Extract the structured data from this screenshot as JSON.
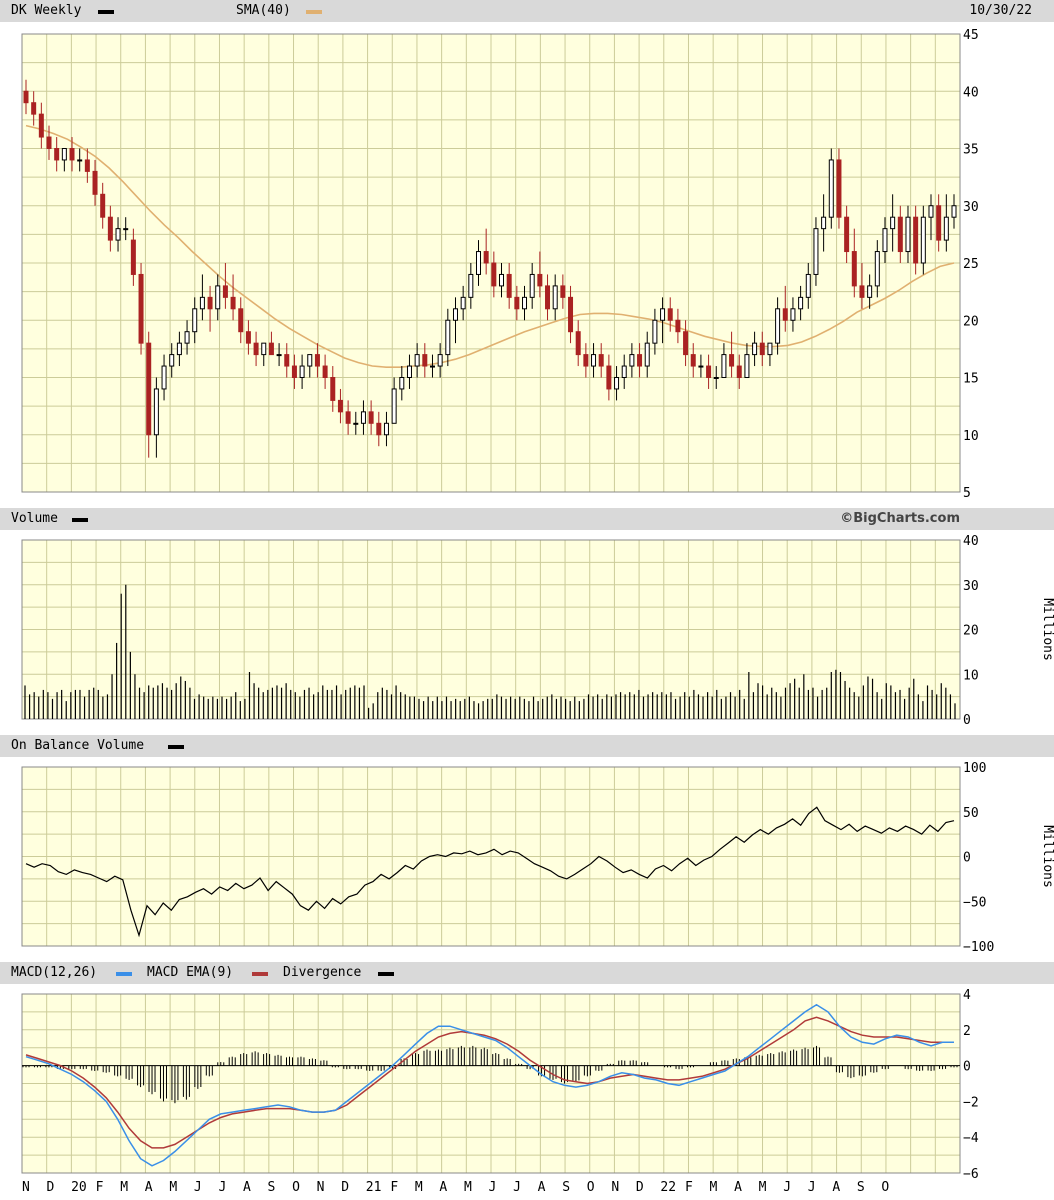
{
  "colors": {
    "plot_bg": "#ffffde",
    "grid": "#cccc99",
    "up": "#000000",
    "down": "#aa2222",
    "sma": "#e0b070",
    "macd": "#3a8fe8",
    "signal": "#b03a3a",
    "line": "#000000",
    "band": "#d9d9d9"
  },
  "header": {
    "ticker_label": "DK Weekly",
    "sma_label": "SMA(40)",
    "date": "10/30/22"
  },
  "volume_panel": {
    "label": "Volume",
    "credit": "©BigCharts.com",
    "unit": "Millions"
  },
  "obv_panel": {
    "label": "On Balance Volume",
    "unit": "Millions"
  },
  "macd_panel": {
    "label_macd": "MACD(12,26)",
    "label_ema": "MACD EMA(9)",
    "label_div": "Divergence"
  },
  "chart_data": [
    {
      "type": "candlestick",
      "panel": "price",
      "ylim": [
        5,
        45
      ],
      "yticks": [
        5,
        10,
        15,
        20,
        25,
        30,
        35,
        40,
        45
      ],
      "x_tick_labels": [
        "N",
        "D",
        "20",
        "F",
        "M",
        "A",
        "M",
        "J",
        "J",
        "A",
        "S",
        "O",
        "N",
        "D",
        "21",
        "F",
        "M",
        "A",
        "M",
        "J",
        "J",
        "A",
        "S",
        "O",
        "N",
        "D",
        "22",
        "F",
        "M",
        "A",
        "M",
        "J",
        "J",
        "A",
        "S",
        "O"
      ],
      "candles": [
        [
          40,
          41,
          38,
          39
        ],
        [
          39,
          40,
          37,
          38
        ],
        [
          38,
          39,
          35,
          36
        ],
        [
          36,
          37,
          34,
          35
        ],
        [
          35,
          36,
          33,
          34
        ],
        [
          34,
          35,
          33,
          35
        ],
        [
          35,
          36,
          33,
          34
        ],
        [
          34,
          35,
          33,
          34
        ],
        [
          34,
          35,
          32,
          33
        ],
        [
          33,
          34,
          30,
          31
        ],
        [
          31,
          32,
          28,
          29
        ],
        [
          29,
          30,
          26,
          27
        ],
        [
          27,
          29,
          26,
          28
        ],
        [
          28,
          29,
          27,
          28
        ],
        [
          27,
          28,
          23,
          24
        ],
        [
          24,
          25,
          17,
          18
        ],
        [
          18,
          19,
          8,
          10
        ],
        [
          10,
          15,
          8,
          14
        ],
        [
          14,
          17,
          13,
          16
        ],
        [
          16,
          18,
          15,
          17
        ],
        [
          17,
          19,
          16,
          18
        ],
        [
          18,
          20,
          17,
          19
        ],
        [
          19,
          22,
          18,
          21
        ],
        [
          21,
          24,
          20,
          22
        ],
        [
          22,
          23,
          19,
          21
        ],
        [
          21,
          24,
          20,
          23
        ],
        [
          23,
          25,
          21,
          22
        ],
        [
          22,
          24,
          20,
          21
        ],
        [
          21,
          22,
          18,
          19
        ],
        [
          19,
          20,
          17,
          18
        ],
        [
          18,
          19,
          16,
          17
        ],
        [
          17,
          18,
          16,
          18
        ],
        [
          18,
          19,
          17,
          17
        ],
        [
          17,
          18,
          16,
          17
        ],
        [
          17,
          18,
          15,
          16
        ],
        [
          16,
          17,
          14,
          15
        ],
        [
          15,
          17,
          14,
          16
        ],
        [
          16,
          17,
          15,
          17
        ],
        [
          17,
          18,
          15,
          16
        ],
        [
          16,
          17,
          14,
          15
        ],
        [
          15,
          16,
          12,
          13
        ],
        [
          13,
          14,
          11,
          12
        ],
        [
          12,
          13,
          10,
          11
        ],
        [
          11,
          12,
          10,
          11
        ],
        [
          11,
          13,
          10,
          12
        ],
        [
          12,
          13,
          10,
          11
        ],
        [
          11,
          12,
          9,
          10
        ],
        [
          10,
          12,
          9,
          11
        ],
        [
          11,
          15,
          11,
          14
        ],
        [
          14,
          16,
          13,
          15
        ],
        [
          15,
          17,
          14,
          16
        ],
        [
          16,
          18,
          15,
          17
        ],
        [
          17,
          18,
          15,
          16
        ],
        [
          16,
          17,
          15,
          16
        ],
        [
          16,
          18,
          15,
          17
        ],
        [
          17,
          21,
          16,
          20
        ],
        [
          20,
          22,
          18,
          21
        ],
        [
          21,
          23,
          20,
          22
        ],
        [
          22,
          25,
          21,
          24
        ],
        [
          24,
          27,
          23,
          26
        ],
        [
          26,
          28,
          24,
          25
        ],
        [
          25,
          26,
          22,
          23
        ],
        [
          23,
          25,
          22,
          24
        ],
        [
          24,
          25,
          21,
          22
        ],
        [
          22,
          23,
          20,
          21
        ],
        [
          21,
          23,
          20,
          22
        ],
        [
          22,
          25,
          21,
          24
        ],
        [
          24,
          26,
          22,
          23
        ],
        [
          23,
          24,
          20,
          21
        ],
        [
          21,
          24,
          20,
          23
        ],
        [
          23,
          24,
          21,
          22
        ],
        [
          22,
          23,
          18,
          19
        ],
        [
          19,
          20,
          16,
          17
        ],
        [
          17,
          18,
          15,
          16
        ],
        [
          16,
          18,
          15,
          17
        ],
        [
          17,
          18,
          15,
          16
        ],
        [
          16,
          17,
          13,
          14
        ],
        [
          14,
          16,
          13,
          15
        ],
        [
          15,
          17,
          14,
          16
        ],
        [
          16,
          18,
          15,
          17
        ],
        [
          17,
          18,
          15,
          16
        ],
        [
          16,
          19,
          15,
          18
        ],
        [
          18,
          21,
          17,
          20
        ],
        [
          20,
          22,
          18,
          21
        ],
        [
          21,
          22,
          19,
          20
        ],
        [
          20,
          21,
          18,
          19
        ],
        [
          19,
          20,
          16,
          17
        ],
        [
          17,
          18,
          15,
          16
        ],
        [
          16,
          17,
          15,
          16
        ],
        [
          16,
          17,
          14,
          15
        ],
        [
          15,
          16,
          14,
          15
        ],
        [
          15,
          18,
          15,
          17
        ],
        [
          17,
          19,
          15,
          16
        ],
        [
          16,
          17,
          14,
          15
        ],
        [
          15,
          18,
          15,
          17
        ],
        [
          17,
          19,
          16,
          18
        ],
        [
          18,
          19,
          16,
          17
        ],
        [
          17,
          18,
          16,
          18
        ],
        [
          18,
          22,
          17,
          21
        ],
        [
          21,
          23,
          19,
          20
        ],
        [
          20,
          22,
          19,
          21
        ],
        [
          21,
          23,
          20,
          22
        ],
        [
          22,
          25,
          21,
          24
        ],
        [
          24,
          29,
          23,
          28
        ],
        [
          28,
          31,
          26,
          29
        ],
        [
          29,
          35,
          28,
          34
        ],
        [
          34,
          35,
          28,
          29
        ],
        [
          29,
          30,
          25,
          26
        ],
        [
          26,
          28,
          22,
          23
        ],
        [
          23,
          25,
          21,
          22
        ],
        [
          22,
          24,
          21,
          23
        ],
        [
          23,
          27,
          22,
          26
        ],
        [
          26,
          29,
          25,
          28
        ],
        [
          28,
          31,
          26,
          29
        ],
        [
          29,
          30,
          25,
          26
        ],
        [
          26,
          30,
          25,
          29
        ],
        [
          29,
          30,
          24,
          25
        ],
        [
          25,
          30,
          24,
          29
        ],
        [
          29,
          31,
          27,
          30
        ],
        [
          30,
          31,
          26,
          27
        ],
        [
          27,
          31,
          26,
          29
        ],
        [
          29,
          31,
          28,
          30
        ]
      ],
      "sma40": [
        37,
        36.7,
        36.3,
        35.8,
        35.1,
        34.3,
        33.3,
        32.1,
        30.8,
        29.5,
        28.3,
        27.2,
        26.0,
        24.9,
        23.8,
        22.8,
        21.9,
        21.0,
        20.1,
        19.3,
        18.6,
        17.9,
        17.3,
        16.7,
        16.3,
        16.0,
        15.9,
        15.9,
        16.0,
        16.1,
        16.3,
        16.6,
        17.0,
        17.5,
        18.0,
        18.5,
        19.0,
        19.4,
        19.8,
        20.2,
        20.5,
        20.6,
        20.6,
        20.5,
        20.3,
        20.1,
        19.8,
        19.4,
        19.0,
        18.6,
        18.3,
        18.0,
        17.8,
        17.7,
        17.7,
        17.8,
        18.1,
        18.6,
        19.2,
        19.9,
        20.7,
        21.3,
        21.9,
        22.6,
        23.4,
        24.1,
        24.7,
        25.0
      ]
    },
    {
      "type": "bar",
      "panel": "volume",
      "ylabel": "Millions",
      "ylim": [
        0,
        40
      ],
      "yticks": [
        0,
        10,
        20,
        30,
        40
      ],
      "values": [
        7.5,
        5.5,
        6,
        5,
        6.5,
        6,
        4.5,
        6,
        6.5,
        4,
        6,
        6.5,
        6.5,
        5,
        6.5,
        7,
        6.5,
        5,
        5.5,
        10,
        17,
        28,
        30,
        15,
        10,
        7,
        6,
        7.5,
        7,
        7.5,
        8,
        7,
        6.5,
        8,
        9.5,
        8.5,
        7,
        4.5,
        5.5,
        5,
        4.5,
        5,
        4.5,
        5,
        4.5,
        5,
        6,
        4,
        4.5,
        10.5,
        8,
        7,
        6,
        6.5,
        7,
        7.5,
        7,
        8,
        6.5,
        6,
        5,
        6.5,
        7,
        5.5,
        6,
        7.5,
        6.5,
        6.5,
        7.5,
        5.5,
        6.5,
        7,
        7.5,
        7,
        7.5,
        2.5,
        3.5,
        6,
        7,
        6.5,
        5.5,
        7.5,
        6,
        5.5,
        5,
        5,
        4.5,
        4,
        5,
        4,
        5,
        4,
        5,
        4,
        4.5,
        4,
        4.5,
        5,
        4,
        3.5,
        4,
        4.5,
        4.5,
        5.5,
        5,
        4.5,
        5,
        4.5,
        5,
        4.5,
        4,
        5,
        4,
        4.5,
        5,
        5.5,
        4.5,
        5,
        4.5,
        4,
        5,
        4,
        4.5,
        5.5,
        5,
        5.5,
        4.5,
        5.5,
        5,
        5.5,
        6,
        5.5,
        6,
        5.5,
        6.5,
        5,
        5.5,
        6,
        5.5,
        6,
        5.5,
        6,
        4.5,
        5,
        6,
        5,
        6.5,
        5.5,
        5,
        6,
        5,
        6.5,
        4.5,
        5,
        6,
        5,
        6.5,
        4.5,
        10.5,
        6,
        8,
        7.5,
        5.5,
        7,
        6,
        5,
        7,
        8,
        9,
        7,
        10,
        6.5,
        7,
        5,
        6.5,
        7,
        10.5,
        11,
        10.5,
        8.5,
        7,
        6,
        5,
        7.5,
        9.5,
        9,
        6,
        4.5,
        8,
        7.5,
        6,
        6.5,
        4.5,
        7,
        9,
        5.5,
        4,
        7.5,
        6.5,
        5.5,
        8,
        7,
        5.5,
        3.5
      ]
    },
    {
      "type": "line",
      "panel": "on-balance-volume",
      "ylabel": "Millions",
      "ylim": [
        -100,
        100
      ],
      "yticks": [
        -100,
        -50,
        0,
        50,
        100
      ],
      "values": [
        -8,
        -12,
        -8,
        -10,
        -17,
        -20,
        -15,
        -18,
        -20,
        -24,
        -28,
        -22,
        -26,
        -60,
        -88,
        -55,
        -65,
        -52,
        -60,
        -48,
        -45,
        -40,
        -36,
        -42,
        -34,
        -38,
        -30,
        -36,
        -32,
        -24,
        -38,
        -28,
        -35,
        -42,
        -55,
        -60,
        -50,
        -58,
        -47,
        -53,
        -45,
        -42,
        -32,
        -28,
        -20,
        -25,
        -18,
        -10,
        -14,
        -5,
        0,
        2,
        0,
        4,
        3,
        6,
        2,
        4,
        8,
        2,
        6,
        4,
        -2,
        -8,
        -12,
        -16,
        -22,
        -25,
        -20,
        -14,
        -8,
        0,
        -5,
        -12,
        -18,
        -15,
        -20,
        -24,
        -14,
        -10,
        -16,
        -8,
        -2,
        -10,
        -4,
        0,
        8,
        15,
        22,
        16,
        24,
        30,
        25,
        32,
        36,
        42,
        35,
        48,
        55,
        40,
        35,
        30,
        36,
        28,
        34,
        30,
        26,
        32,
        28,
        34,
        30,
        25,
        35,
        28,
        38,
        40
      ]
    },
    {
      "type": "line",
      "panel": "macd",
      "ylim": [
        -6,
        4
      ],
      "yticks": [
        -6,
        -4,
        -2,
        0,
        2,
        4
      ],
      "macd": [
        0.5,
        0.3,
        0.1,
        -0.2,
        -0.5,
        -0.9,
        -1.4,
        -2.0,
        -3.0,
        -4.2,
        -5.2,
        -5.6,
        -5.3,
        -4.8,
        -4.2,
        -3.6,
        -3.0,
        -2.7,
        -2.6,
        -2.5,
        -2.4,
        -2.3,
        -2.2,
        -2.3,
        -2.5,
        -2.6,
        -2.6,
        -2.5,
        -2.0,
        -1.5,
        -1.0,
        -0.5,
        0.0,
        0.6,
        1.2,
        1.8,
        2.2,
        2.2,
        2.0,
        1.8,
        1.6,
        1.4,
        1.0,
        0.5,
        0.0,
        -0.5,
        -0.9,
        -1.1,
        -1.2,
        -1.1,
        -0.9,
        -0.6,
        -0.4,
        -0.5,
        -0.7,
        -0.8,
        -1.0,
        -1.1,
        -0.9,
        -0.7,
        -0.5,
        -0.3,
        0.1,
        0.5,
        1.0,
        1.5,
        2.0,
        2.5,
        3.0,
        3.4,
        3.0,
        2.2,
        1.6,
        1.3,
        1.2,
        1.5,
        1.7,
        1.6,
        1.3,
        1.1,
        1.3,
        1.3
      ],
      "signal": [
        0.6,
        0.4,
        0.2,
        0.0,
        -0.3,
        -0.7,
        -1.2,
        -1.8,
        -2.6,
        -3.5,
        -4.2,
        -4.6,
        -4.6,
        -4.4,
        -4.0,
        -3.6,
        -3.2,
        -2.9,
        -2.7,
        -2.6,
        -2.5,
        -2.4,
        -2.4,
        -2.4,
        -2.5,
        -2.6,
        -2.6,
        -2.5,
        -2.2,
        -1.7,
        -1.2,
        -0.7,
        -0.2,
        0.3,
        0.8,
        1.2,
        1.6,
        1.8,
        1.9,
        1.8,
        1.7,
        1.5,
        1.2,
        0.8,
        0.3,
        -0.1,
        -0.5,
        -0.8,
        -0.9,
        -1.0,
        -0.9,
        -0.7,
        -0.6,
        -0.5,
        -0.6,
        -0.7,
        -0.8,
        -0.8,
        -0.7,
        -0.6,
        -0.4,
        -0.2,
        0.1,
        0.4,
        0.8,
        1.2,
        1.6,
        2.0,
        2.5,
        2.7,
        2.5,
        2.2,
        1.9,
        1.7,
        1.6,
        1.6,
        1.6,
        1.5,
        1.4,
        1.3,
        1.3,
        1.3
      ],
      "divergence": [
        -0.1,
        -0.1,
        -0.1,
        -0.2,
        -0.2,
        -0.2,
        -0.3,
        -0.4,
        -0.6,
        -0.8,
        -1.2,
        -1.6,
        -2.0,
        -2.1,
        -1.9,
        -1.3,
        -0.6,
        0.2,
        0.5,
        0.7,
        0.8,
        0.7,
        0.6,
        0.5,
        0.5,
        0.4,
        0.3,
        -0.1,
        -0.2,
        -0.2,
        -0.3,
        -0.3,
        -0.2,
        0.4,
        0.7,
        0.9,
        0.9,
        1.0,
        1.1,
        1.1,
        1.0,
        0.7,
        0.4,
        0.1,
        -0.2,
        -0.6,
        -0.8,
        -1.0,
        -0.9,
        -0.6,
        -0.3,
        0.1,
        0.3,
        0.3,
        0.2,
        0.0,
        -0.1,
        -0.2,
        -0.1,
        0.0,
        0.2,
        0.3,
        0.4,
        0.5,
        0.6,
        0.7,
        0.8,
        0.9,
        1.0,
        1.1,
        0.5,
        -0.4,
        -0.7,
        -0.6,
        -0.4,
        -0.2,
        0.0,
        -0.2,
        -0.3,
        -0.3,
        -0.2,
        -0.1
      ]
    }
  ]
}
